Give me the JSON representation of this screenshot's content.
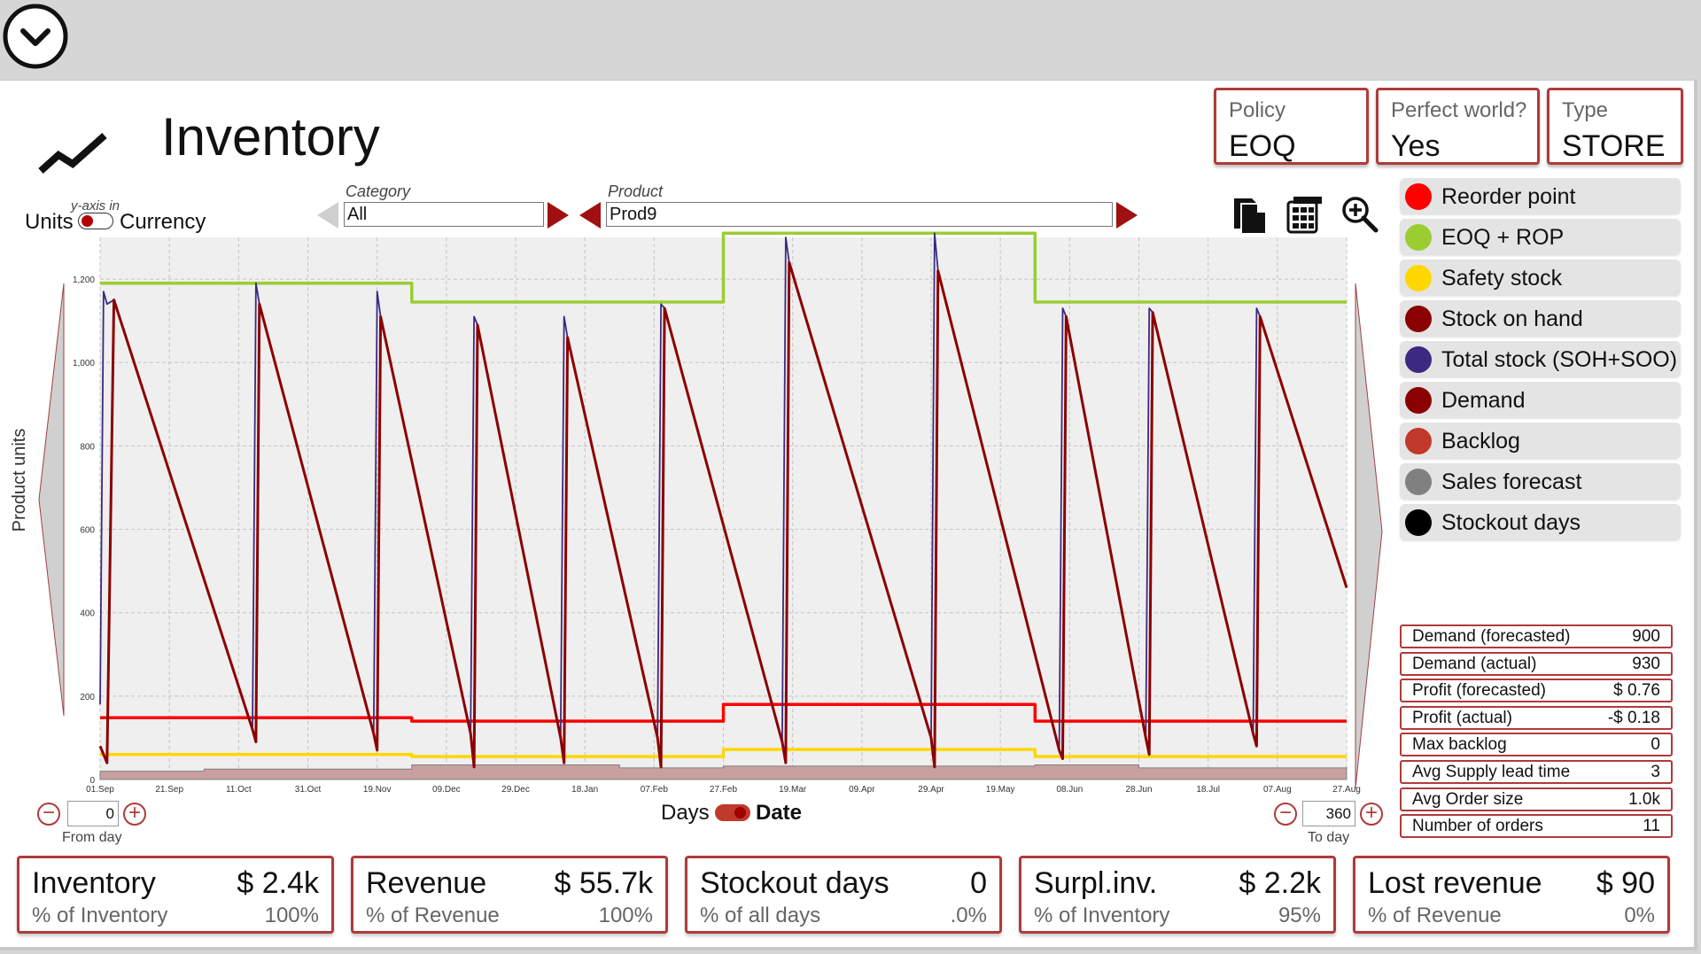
{
  "header": {
    "title": "Inventory"
  },
  "info_boxes": [
    {
      "label": "Policy",
      "value": "EOQ"
    },
    {
      "label": "Perfect world?",
      "value": "Yes"
    },
    {
      "label": "Type",
      "value": "STORE"
    }
  ],
  "yaxis_toggle": {
    "caption": "y-axis in",
    "left": "Units",
    "right": "Currency",
    "selected": "Units"
  },
  "filters": {
    "category_label": "Category",
    "category_value": "All",
    "product_label": "Product",
    "product_value": "Prod9"
  },
  "tools": [
    "copy-icon",
    "calculator-icon",
    "zoom-in-icon"
  ],
  "legend": [
    {
      "label": "Reorder point",
      "color": "#ff0000"
    },
    {
      "label": "EOQ + ROP",
      "color": "#9acd32"
    },
    {
      "label": "Safety stock",
      "color": "#ffd700"
    },
    {
      "label": "Stock on hand",
      "color": "#8b0000"
    },
    {
      "label": "Total stock (SOH+SOO)",
      "color": "#3b2a80"
    },
    {
      "label": "Demand",
      "color": "#8b0000"
    },
    {
      "label": "Backlog",
      "color": "#c0392b"
    },
    {
      "label": "Sales forecast",
      "color": "#808080"
    },
    {
      "label": "Stockout days",
      "color": "#000000"
    }
  ],
  "stats": [
    {
      "label": "Demand (forecasted)",
      "value": "900"
    },
    {
      "label": "Demand (actual)",
      "value": "930"
    },
    {
      "label": "Profit (forecasted)",
      "value": "$ 0.76"
    },
    {
      "label": "Profit (actual)",
      "value": "-$ 0.18"
    },
    {
      "label": "Max backlog",
      "value": "0"
    },
    {
      "label": "Avg Supply lead time",
      "value": "3"
    },
    {
      "label": "Avg Order size",
      "value": "1.0k"
    },
    {
      "label": "Number of orders",
      "value": "11"
    }
  ],
  "kpis": [
    {
      "name": "Inventory",
      "value": "$ 2.4k",
      "sub": "% of Inventory",
      "pct": "100%"
    },
    {
      "name": "Revenue",
      "value": "$ 55.7k",
      "sub": "% of Revenue",
      "pct": "100%"
    },
    {
      "name": "Stockout days",
      "value": "0",
      "sub": "% of all days",
      "pct": ".0%"
    },
    {
      "name": "Surpl.inv.",
      "value": "$ 2.2k",
      "sub": "% of Inventory",
      "pct": "95%"
    },
    {
      "name": "Lost revenue",
      "value": "$ 90",
      "sub": "% of Revenue",
      "pct": "0%"
    }
  ],
  "range": {
    "from_value": "0",
    "from_label": "From day",
    "to_value": "360",
    "to_label": "To day"
  },
  "xaxis_toggle": {
    "left": "Days",
    "right": "Date",
    "selected": "Date"
  },
  "chart_data": {
    "type": "line",
    "ylabel": "Product units",
    "ylim": [
      0,
      1300
    ],
    "yticks": [
      0,
      200,
      400,
      600,
      800,
      1000,
      1200
    ],
    "ytick_labels": [
      "0",
      "200",
      "400",
      "600",
      "800",
      "1,000",
      "1,200"
    ],
    "xlim": [
      0,
      360
    ],
    "xticks": [
      0,
      20,
      40,
      60,
      80,
      100,
      120,
      140,
      160,
      180,
      200,
      220,
      240,
      260,
      280,
      300,
      320,
      340,
      360
    ],
    "xtick_labels": [
      "01.Sep",
      "21.Sep",
      "11.Oct",
      "31.Oct",
      "19.Nov",
      "09.Dec",
      "29.Dec",
      "18.Jan",
      "07.Feb",
      "27.Feb",
      "19.Mar",
      "09.Apr",
      "29.Apr",
      "19.May",
      "08.Jun",
      "28.Jun",
      "18.Jul",
      "07.Aug",
      "27.Aug"
    ],
    "grid": true,
    "series": [
      {
        "name": "EOQ + ROP",
        "color": "#9acd32",
        "step": true,
        "points": [
          [
            0,
            1190
          ],
          [
            90,
            1190
          ],
          [
            90,
            1145
          ],
          [
            180,
            1145
          ],
          [
            180,
            1310
          ],
          [
            270,
            1310
          ],
          [
            270,
            1145
          ],
          [
            360,
            1145
          ]
        ]
      },
      {
        "name": "Reorder point",
        "color": "#ff0000",
        "step": true,
        "points": [
          [
            0,
            148
          ],
          [
            90,
            148
          ],
          [
            90,
            140
          ],
          [
            180,
            140
          ],
          [
            180,
            180
          ],
          [
            270,
            180
          ],
          [
            270,
            140
          ],
          [
            360,
            140
          ]
        ]
      },
      {
        "name": "Safety stock",
        "color": "#ffd700",
        "step": true,
        "points": [
          [
            0,
            60
          ],
          [
            90,
            60
          ],
          [
            90,
            55
          ],
          [
            180,
            55
          ],
          [
            180,
            72
          ],
          [
            270,
            72
          ],
          [
            270,
            55
          ],
          [
            360,
            55
          ]
        ]
      },
      {
        "name": "Stock on hand",
        "color": "#8b0000",
        "step": false,
        "points": [
          [
            0,
            80
          ],
          [
            2,
            40
          ],
          [
            4,
            1150
          ],
          [
            44,
            120
          ],
          [
            45,
            90
          ],
          [
            46,
            1140
          ],
          [
            79,
            110
          ],
          [
            80,
            70
          ],
          [
            81,
            1110
          ],
          [
            107,
            110
          ],
          [
            108,
            30
          ],
          [
            109,
            1090
          ],
          [
            133,
            100
          ],
          [
            134,
            40
          ],
          [
            135,
            1060
          ],
          [
            161,
            100
          ],
          [
            162,
            30
          ],
          [
            163,
            1130
          ],
          [
            197,
            90
          ],
          [
            198,
            40
          ],
          [
            199,
            1240
          ],
          [
            240,
            100
          ],
          [
            241,
            30
          ],
          [
            242,
            1220
          ],
          [
            277,
            70
          ],
          [
            278,
            50
          ],
          [
            279,
            1110
          ],
          [
            302,
            100
          ],
          [
            303,
            60
          ],
          [
            304,
            1120
          ],
          [
            333,
            110
          ],
          [
            334,
            80
          ],
          [
            335,
            1110
          ],
          [
            360,
            460
          ]
        ]
      },
      {
        "name": "Total stock (SOH+SOO)",
        "color": "#3b2a80",
        "step": false,
        "points": [
          [
            0,
            180
          ],
          [
            1,
            1170
          ],
          [
            2,
            1140
          ],
          [
            4,
            1150
          ],
          [
            44,
            120
          ],
          [
            45,
            1190
          ],
          [
            46,
            1140
          ],
          [
            79,
            110
          ],
          [
            80,
            1170
          ],
          [
            81,
            1110
          ],
          [
            107,
            110
          ],
          [
            108,
            1110
          ],
          [
            109,
            1090
          ],
          [
            133,
            100
          ],
          [
            134,
            1110
          ],
          [
            135,
            1060
          ],
          [
            161,
            100
          ],
          [
            162,
            1140
          ],
          [
            163,
            1130
          ],
          [
            197,
            90
          ],
          [
            198,
            1300
          ],
          [
            199,
            1240
          ],
          [
            240,
            100
          ],
          [
            241,
            1310
          ],
          [
            242,
            1220
          ],
          [
            277,
            70
          ],
          [
            278,
            1130
          ],
          [
            279,
            1110
          ],
          [
            302,
            100
          ],
          [
            303,
            1130
          ],
          [
            304,
            1120
          ],
          [
            333,
            110
          ],
          [
            334,
            1130
          ],
          [
            335,
            1110
          ],
          [
            360,
            460
          ]
        ]
      },
      {
        "name": "Sales forecast",
        "color": "#808080",
        "step": true,
        "points": [
          [
            0,
            20
          ],
          [
            30,
            25
          ],
          [
            90,
            35
          ],
          [
            150,
            28
          ],
          [
            180,
            32
          ],
          [
            270,
            35
          ],
          [
            300,
            28
          ],
          [
            360,
            30
          ]
        ]
      }
    ]
  }
}
